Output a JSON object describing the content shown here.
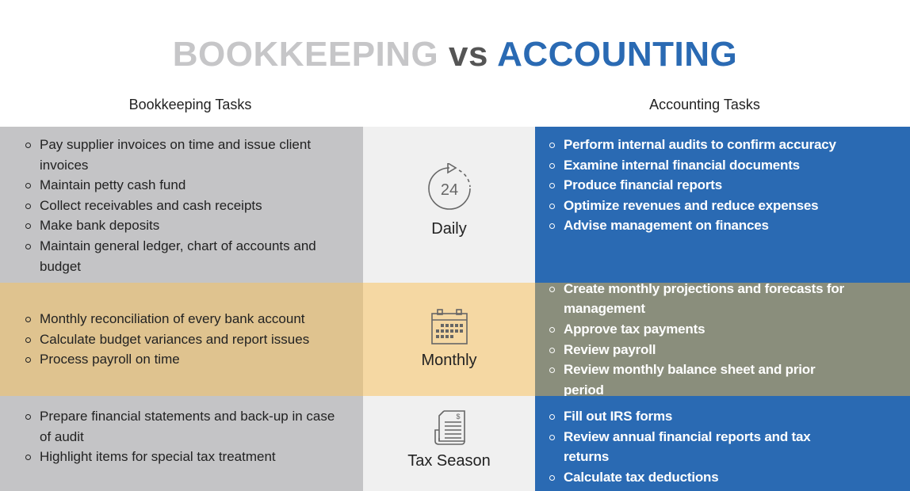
{
  "title": {
    "part1": "BOOKKEEPING",
    "part2": "vs",
    "part3": "ACCOUNTING"
  },
  "headers": {
    "left": "Bookkeeping Tasks",
    "right": "Accounting Tasks"
  },
  "colors": {
    "gray": "#c4c4c6",
    "light": "#f0f0f0",
    "blue": "#2a6ab3",
    "tan": "#dfc38f",
    "light_tan": "#f5d8a3",
    "olive": "#8a8e7c"
  },
  "rows": [
    {
      "label": "Daily",
      "icon": "clock-24-icon",
      "bookkeeping": [
        "Pay supplier invoices on time and issue client invoices",
        "Maintain petty cash fund",
        "Collect receivables and cash receipts",
        "Make bank deposits",
        "Maintain general ledger, chart of accounts and budget"
      ],
      "accounting": [
        "Perform internal audits to confirm accuracy",
        "Examine internal financial documents",
        "Produce financial reports",
        "Optimize revenues and reduce expenses",
        "Advise management on finances"
      ]
    },
    {
      "label": "Monthly",
      "icon": "calendar-icon",
      "bookkeeping": [
        "Monthly reconciliation of every bank account",
        "Calculate budget variances and report issues",
        "Process payroll on time"
      ],
      "accounting": [
        "Create monthly projections and forecasts for management",
        "Approve tax payments",
        "Review payroll",
        "Review monthly balance sheet and prior period"
      ]
    },
    {
      "label": "Tax Season",
      "icon": "tax-document-icon",
      "bookkeeping": [
        "Prepare financial statements and back-up in case of audit",
        "Highlight items for special tax treatment"
      ],
      "accounting": [
        "Fill out IRS forms",
        "Review annual financial reports and tax returns",
        "Calculate tax deductions"
      ]
    }
  ]
}
